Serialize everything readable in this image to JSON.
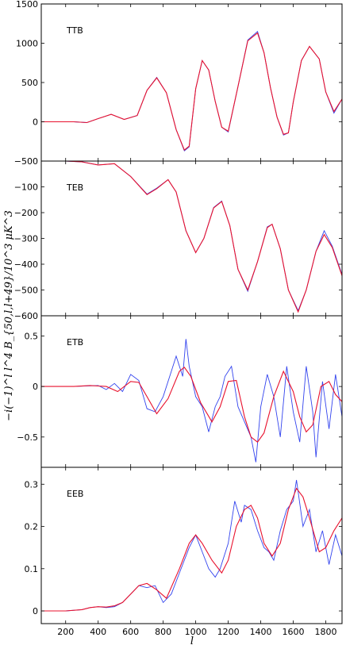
{
  "figure": {
    "xlabel": "l",
    "ylabel": "−i(−1)^l l^4 B_{50,l,l+49}/10^3 μK^3",
    "xticks": [
      200,
      400,
      600,
      800,
      1000,
      1200,
      1400,
      1600,
      1800
    ],
    "xlim": [
      50,
      1900
    ]
  },
  "chart_data": [
    {
      "type": "line",
      "label": "TTB",
      "xlim": [
        50,
        1900
      ],
      "ylim": [
        -500,
        1500
      ],
      "yticks": [
        -500,
        0,
        500,
        1000,
        1500
      ],
      "ytick_labels": [
        "−500",
        "0",
        "500",
        "1000",
        "1500"
      ],
      "grid": false,
      "series": [
        {
          "color": "#3344ee",
          "x": [
            50,
            250,
            330,
            400,
            480,
            560,
            640,
            700,
            760,
            820,
            880,
            930,
            960,
            1000,
            1040,
            1080,
            1120,
            1160,
            1200,
            1260,
            1320,
            1380,
            1420,
            1460,
            1500,
            1540,
            1570,
            1600,
            1650,
            1700,
            1760,
            1800,
            1850,
            1900
          ],
          "y": [
            0,
            0,
            -10,
            40,
            95,
            30,
            80,
            400,
            565,
            370,
            -100,
            -370,
            -320,
            420,
            780,
            660,
            260,
            -70,
            -130,
            450,
            1040,
            1150,
            880,
            430,
            60,
            -170,
            -140,
            250,
            780,
            960,
            800,
            380,
            110,
            290
          ]
        },
        {
          "color": "#e8112d",
          "x": [
            50,
            250,
            330,
            400,
            480,
            560,
            640,
            700,
            760,
            820,
            880,
            930,
            960,
            1000,
            1040,
            1080,
            1120,
            1160,
            1200,
            1260,
            1320,
            1380,
            1420,
            1460,
            1500,
            1540,
            1570,
            1600,
            1650,
            1700,
            1760,
            1800,
            1850,
            1900
          ],
          "y": [
            0,
            0,
            -10,
            40,
            95,
            30,
            80,
            400,
            560,
            370,
            -100,
            -360,
            -310,
            420,
            780,
            660,
            260,
            -70,
            -120,
            450,
            1030,
            1130,
            880,
            430,
            60,
            -160,
            -140,
            250,
            780,
            960,
            800,
            380,
            130,
            290
          ]
        }
      ]
    },
    {
      "type": "line",
      "label": "TEB",
      "xlim": [
        50,
        1900
      ],
      "ylim": [
        -600,
        0
      ],
      "yticks": [
        -600,
        -500,
        -400,
        -300,
        -200,
        -100
      ],
      "ytick_labels": [
        "−600",
        "−500",
        "−400",
        "−300",
        "−200",
        "−100"
      ],
      "grid": false,
      "series": [
        {
          "color": "#3344ee",
          "x": [
            50,
            200,
            300,
            400,
            500,
            600,
            700,
            760,
            830,
            880,
            940,
            1000,
            1050,
            1110,
            1160,
            1210,
            1260,
            1320,
            1380,
            1440,
            1470,
            1520,
            1570,
            1630,
            1680,
            1740,
            1790,
            1840,
            1900
          ],
          "y": [
            0,
            0,
            -3,
            -15,
            -10,
            -60,
            -128,
            -105,
            -72,
            -120,
            -270,
            -355,
            -300,
            -180,
            -155,
            -250,
            -420,
            -505,
            -390,
            -255,
            -245,
            -340,
            -500,
            -580,
            -500,
            -350,
            -270,
            -330,
            -440
          ]
        },
        {
          "color": "#e8112d",
          "x": [
            50,
            200,
            300,
            400,
            500,
            600,
            700,
            760,
            830,
            880,
            940,
            1000,
            1050,
            1110,
            1160,
            1210,
            1260,
            1320,
            1380,
            1440,
            1470,
            1520,
            1570,
            1630,
            1680,
            1740,
            1790,
            1840,
            1900
          ],
          "y": [
            0,
            0,
            -3,
            -15,
            -10,
            -60,
            -130,
            -107,
            -72,
            -120,
            -270,
            -355,
            -300,
            -182,
            -157,
            -250,
            -420,
            -500,
            -390,
            -258,
            -245,
            -340,
            -500,
            -585,
            -500,
            -350,
            -285,
            -335,
            -445
          ]
        }
      ]
    },
    {
      "type": "line",
      "label": "ETB",
      "xlim": [
        50,
        1900
      ],
      "ylim": [
        -0.8,
        0.7
      ],
      "yticks": [
        -0.5,
        0,
        0.5
      ],
      "ytick_labels": [
        "−0.5",
        "0",
        "0.5"
      ],
      "grid": false,
      "series": [
        {
          "color": "#3344ee",
          "x": [
            50,
            250,
            400,
            450,
            500,
            550,
            600,
            650,
            700,
            750,
            800,
            850,
            880,
            920,
            940,
            960,
            1000,
            1040,
            1080,
            1120,
            1150,
            1180,
            1220,
            1260,
            1300,
            1340,
            1370,
            1400,
            1440,
            1480,
            1520,
            1560,
            1600,
            1640,
            1680,
            1720,
            1740,
            1780,
            1820,
            1860,
            1900
          ],
          "y": [
            0,
            0,
            0.01,
            -0.03,
            0.03,
            -0.05,
            0.12,
            0.06,
            -0.22,
            -0.25,
            -0.1,
            0.15,
            0.3,
            0.1,
            0.47,
            0.2,
            -0.1,
            -0.2,
            -0.45,
            -0.2,
            -0.1,
            0.1,
            0.2,
            -0.2,
            -0.35,
            -0.5,
            -0.75,
            -0.2,
            0.12,
            -0.1,
            -0.5,
            0.2,
            -0.25,
            -0.55,
            0.2,
            -0.25,
            -0.7,
            0.05,
            -0.42,
            0.12,
            -0.3
          ]
        },
        {
          "color": "#e8112d",
          "x": [
            50,
            250,
            350,
            450,
            520,
            600,
            650,
            700,
            760,
            830,
            900,
            930,
            970,
            1030,
            1100,
            1150,
            1200,
            1250,
            1300,
            1340,
            1380,
            1420,
            1480,
            1540,
            1600,
            1640,
            1680,
            1720,
            1770,
            1820,
            1860,
            1900
          ],
          "y": [
            0,
            0,
            0.01,
            0.0,
            -0.05,
            0.05,
            0.04,
            -0.1,
            -0.27,
            -0.12,
            0.15,
            0.19,
            0.1,
            -0.16,
            -0.35,
            -0.2,
            0.05,
            0.06,
            -0.3,
            -0.5,
            -0.55,
            -0.46,
            -0.1,
            0.15,
            -0.05,
            -0.3,
            -0.45,
            -0.38,
            0.0,
            0.05,
            -0.08,
            -0.15
          ]
        }
      ]
    },
    {
      "type": "line",
      "label": "EEB",
      "xlim": [
        50,
        1900
      ],
      "ylim": [
        -0.03,
        0.34
      ],
      "yticks": [
        0,
        0.1,
        0.2,
        0.3
      ],
      "ytick_labels": [
        "0",
        "0.1",
        "0.2",
        "0.3"
      ],
      "grid": false,
      "series": [
        {
          "color": "#3344ee",
          "x": [
            50,
            200,
            300,
            350,
            400,
            450,
            500,
            550,
            600,
            650,
            700,
            750,
            800,
            850,
            900,
            960,
            1000,
            1040,
            1080,
            1120,
            1150,
            1200,
            1240,
            1280,
            1300,
            1340,
            1380,
            1420,
            1450,
            1480,
            1520,
            1560,
            1600,
            1620,
            1660,
            1700,
            1740,
            1780,
            1820,
            1860,
            1900
          ],
          "y": [
            0,
            0,
            0.003,
            0.008,
            0.01,
            0.008,
            0.01,
            0.02,
            0.04,
            0.06,
            0.055,
            0.06,
            0.02,
            0.04,
            0.09,
            0.15,
            0.18,
            0.14,
            0.1,
            0.08,
            0.1,
            0.16,
            0.26,
            0.21,
            0.25,
            0.24,
            0.19,
            0.15,
            0.14,
            0.12,
            0.19,
            0.24,
            0.26,
            0.31,
            0.2,
            0.24,
            0.14,
            0.19,
            0.11,
            0.18,
            0.13
          ]
        },
        {
          "color": "#e8112d",
          "x": [
            50,
            200,
            300,
            350,
            400,
            450,
            500,
            550,
            600,
            650,
            700,
            760,
            820,
            900,
            960,
            1000,
            1040,
            1100,
            1160,
            1200,
            1250,
            1300,
            1340,
            1380,
            1420,
            1470,
            1520,
            1570,
            1620,
            1660,
            1700,
            1760,
            1800,
            1850,
            1900
          ],
          "y": [
            0,
            0,
            0.003,
            0.008,
            0.01,
            0.009,
            0.012,
            0.02,
            0.04,
            0.06,
            0.065,
            0.05,
            0.03,
            0.1,
            0.16,
            0.18,
            0.16,
            0.12,
            0.09,
            0.12,
            0.2,
            0.24,
            0.25,
            0.22,
            0.16,
            0.13,
            0.16,
            0.24,
            0.29,
            0.27,
            0.22,
            0.14,
            0.15,
            0.19,
            0.22
          ]
        }
      ]
    }
  ]
}
